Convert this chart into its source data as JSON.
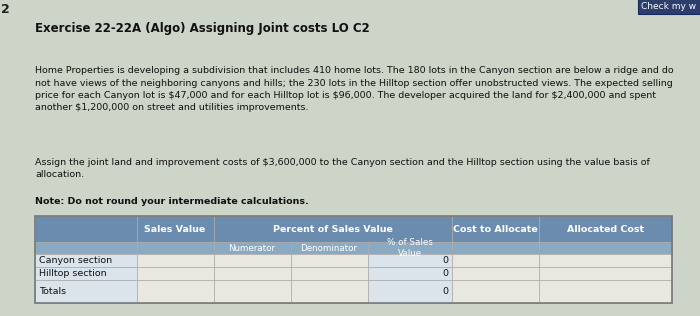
{
  "title": "Exercise 22-22A (Algo) Assigning Joint costs LO C2",
  "body_text": "Home Properties is developing a subdivision that includes 410 home lots. The 180 lots in the Canyon section are below a ridge and do\nnot have views of the neighboring canyons and hills; the 230 lots in the Hilltop section offer unobstructed views. The expected selling\nprice for each Canyon lot is $47,000 and for each Hilltop lot is $96,000. The developer acquired the land for $2,400,000 and spent\nanother $1,200,000 on street and utilities improvements.",
  "assign_text": "Assign the joint land and improvement costs of $3,600,000 to the Canyon section and the Hilltop section using the value basis of\nallocation.",
  "note_text": "Note: Do not round your intermediate calculations.",
  "check_btn_text": "Check my w",
  "check_btn_color": "#2c3e6b",
  "bg_color": "#cdd4c8",
  "table_header_bg": "#6b8cae",
  "table_header_text": "#ffffff",
  "table_subheader_bg": "#8aaac4",
  "table_data_bg": "#dce4eb",
  "table_input_bg": "#e8e8e0",
  "table_border_color": "#aaaaaa",
  "rows": [
    "Canyon section",
    "Hilltop section",
    "Totals"
  ],
  "zeros": [
    "0",
    "0",
    "0"
  ],
  "page_num": "2",
  "title_fontsize": 8.5,
  "body_fontsize": 6.8,
  "table_fontsize": 6.8
}
